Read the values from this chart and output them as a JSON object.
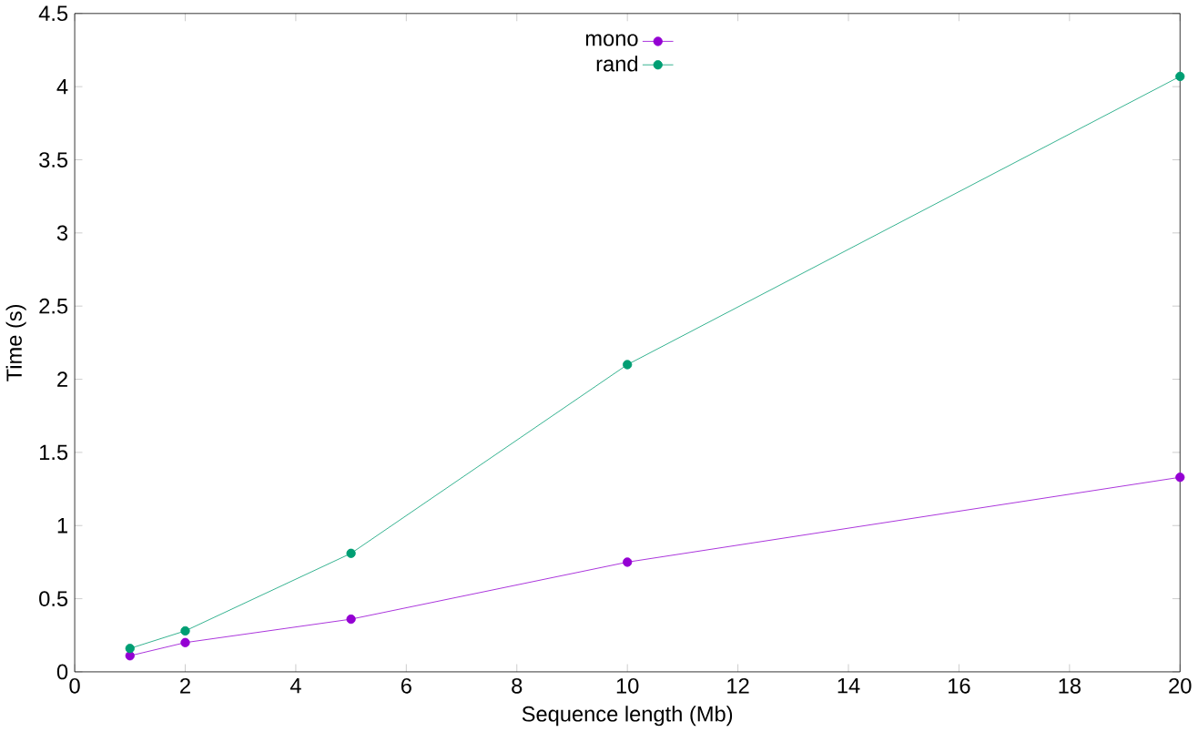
{
  "chart_data": {
    "type": "line",
    "xlabel": "Sequence length (Mb)",
    "ylabel": "Time (s)",
    "x": [
      1,
      2,
      5,
      10,
      20
    ],
    "series": [
      {
        "name": "mono",
        "color": "#9400d3",
        "values": [
          0.11,
          0.2,
          0.36,
          0.75,
          1.33
        ]
      },
      {
        "name": "rand",
        "color": "#009e73",
        "values": [
          0.16,
          0.28,
          0.81,
          2.1,
          4.07
        ]
      }
    ],
    "xlim": [
      0,
      20
    ],
    "ylim": [
      0,
      4.5
    ],
    "xticks": [
      0,
      2,
      4,
      6,
      8,
      10,
      12,
      14,
      16,
      18,
      20
    ],
    "yticks": [
      0,
      0.5,
      1,
      1.5,
      2,
      2.5,
      3,
      3.5,
      4,
      4.5
    ],
    "legend": "top",
    "marker": "circle",
    "line_style": "solid",
    "grid": false
  }
}
